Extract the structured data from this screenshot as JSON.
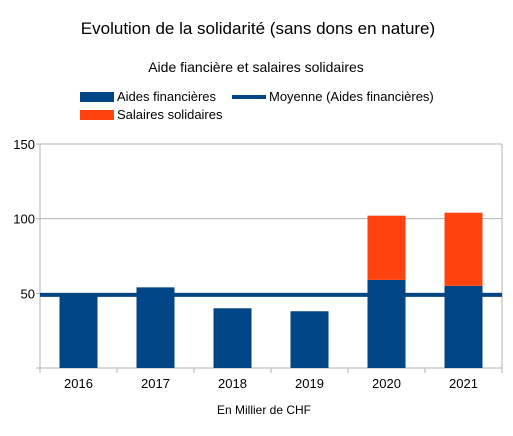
{
  "chart_data": {
    "type": "bar",
    "stacked": true,
    "title": "Evolution de la solidarité (sans dons en nature)",
    "subtitle": "Aide fiancière et salaires solidaires",
    "xlabel": "En Millier de CHF",
    "ylabel": "",
    "categories": [
      "2016",
      "2017",
      "2018",
      "2019",
      "2020",
      "2021"
    ],
    "series": [
      {
        "name": "Aides financières",
        "color": "#004586",
        "values": [
          49,
          54,
          40,
          38,
          59,
          55
        ]
      },
      {
        "name": "Salaires solidaires",
        "color": "#ff420e",
        "values": [
          0,
          0,
          0,
          0,
          43,
          49
        ]
      }
    ],
    "reference_line": {
      "name": "Moyenne (Aides financières)",
      "value": 49,
      "color": "#004586"
    },
    "ylim": [
      0,
      150
    ],
    "yticks": [
      50,
      100,
      150
    ],
    "grid": true,
    "legend_position": "top"
  }
}
